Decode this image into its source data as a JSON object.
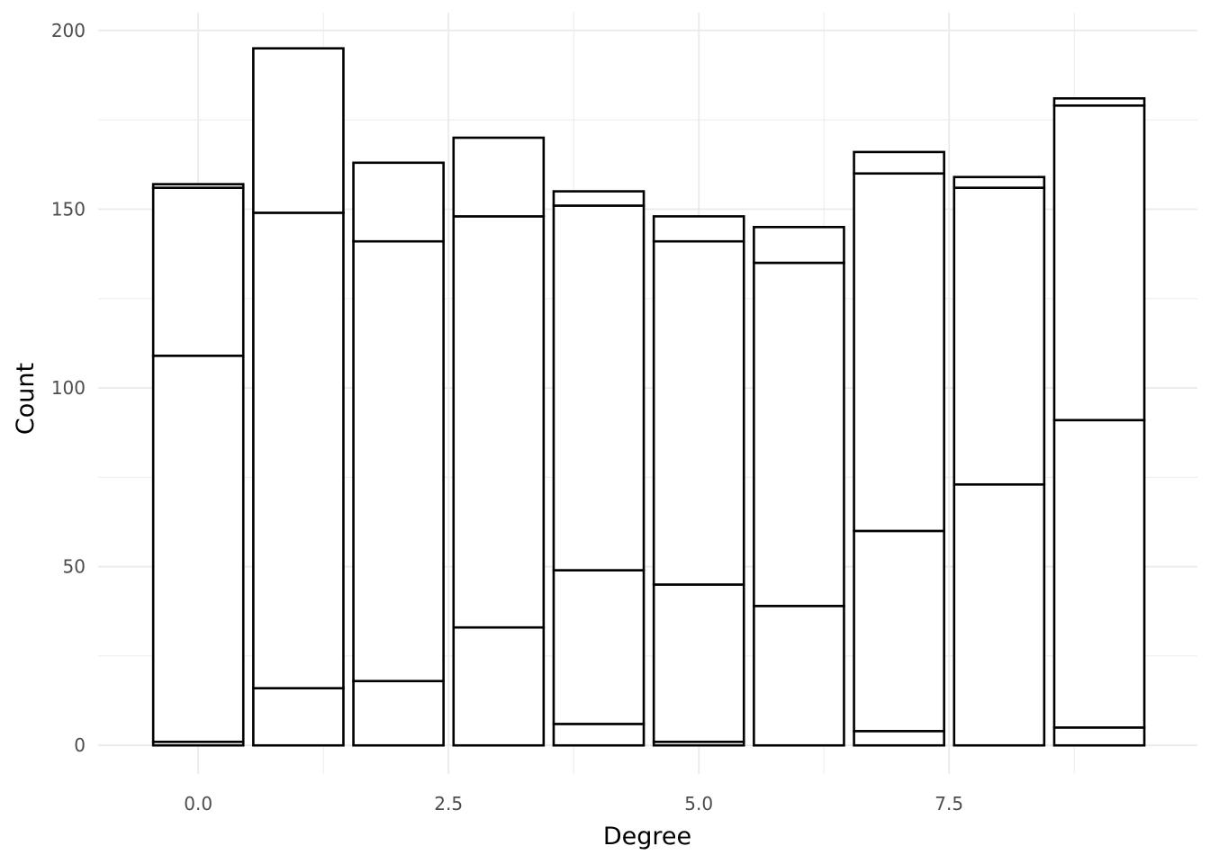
{
  "chart_data": {
    "type": "bar",
    "stacked": true,
    "xlabel": "Degree",
    "ylabel": "Count",
    "xlim": [
      -1.0,
      9.98
    ],
    "ylim": [
      -8,
      205
    ],
    "x_ticks": [
      0.0,
      2.5,
      5.0,
      7.5
    ],
    "x_tick_labels": [
      "0.0",
      "2.5",
      "5.0",
      "7.5"
    ],
    "y_ticks": [
      0,
      50,
      100,
      150,
      200
    ],
    "y_tick_labels": [
      "0",
      "50",
      "100",
      "150",
      "200"
    ],
    "grid": true,
    "legend": "none",
    "bar_fill": "#ffffff",
    "bar_outline": "#000000",
    "categories": [
      0,
      1,
      2,
      3,
      4,
      5,
      6,
      7,
      8,
      9
    ],
    "stack_boundaries": [
      [
        0,
        1,
        109,
        156,
        157
      ],
      [
        0,
        16,
        149,
        195
      ],
      [
        0,
        18,
        141,
        163
      ],
      [
        0,
        33,
        148,
        170
      ],
      [
        0,
        6,
        49,
        151,
        155
      ],
      [
        0,
        1,
        45,
        141,
        148
      ],
      [
        0,
        39,
        135,
        145
      ],
      [
        0,
        4,
        60,
        160,
        166
      ],
      [
        0,
        73,
        156,
        159
      ],
      [
        0,
        5,
        91,
        179,
        181
      ]
    ],
    "totals": [
      157,
      195,
      163,
      170,
      155,
      148,
      145,
      166,
      159,
      181
    ]
  }
}
